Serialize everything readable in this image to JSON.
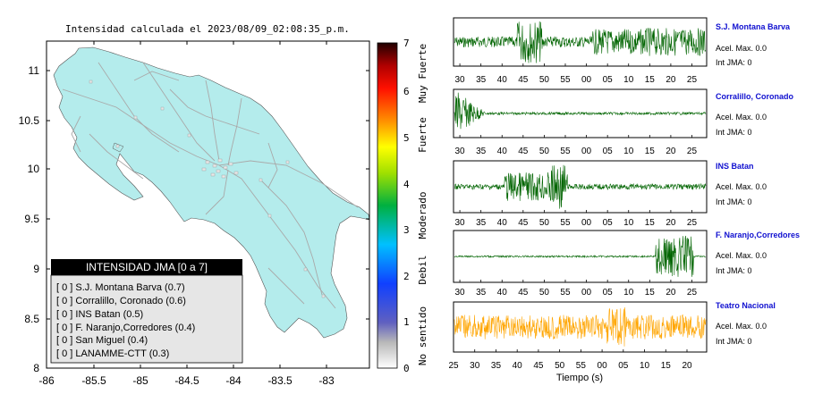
{
  "map": {
    "title": "Intensidad calculada el 2023/08/09_02:08:35_p.m.",
    "y_ticks": [
      "11",
      "10.5",
      "10",
      "9.5",
      "9",
      "8.5",
      "8"
    ],
    "x_ticks": [
      "-86",
      "-85.5",
      "-85",
      "-84.5",
      "-84",
      "-83.5",
      "-83"
    ],
    "land_color": "#b4ecec"
  },
  "legend": {
    "title": "INTENSIDAD JMA [0 a 7]",
    "items": [
      "[ 0 ]  S.J. Montana Barva (0.7)",
      "[ 0 ]  Corralillo, Coronado (0.6)",
      "[ 0 ]  INS Batan (0.5)",
      "[ 0 ]  F. Naranjo,Corredores (0.4)",
      "[ 0 ]  San Miguel (0.4)",
      "[ 0 ]  LANAMME-CTT (0.3)"
    ]
  },
  "colorbar": {
    "ticks": [
      "7",
      "6",
      "5",
      "4",
      "3",
      "2",
      "1",
      "0"
    ],
    "labels": [
      "Muy Fuerte",
      "Fuerte",
      "Moderado",
      "Debil",
      "No sentido"
    ]
  },
  "chart_data": [
    {
      "type": "line",
      "description": "seismogram",
      "station": "S.J. Montana Barva",
      "acel": "Acel. Max. 0.0",
      "int": "Int JMA: 0",
      "color": "#006400",
      "x_ticks": [
        "30",
        "35",
        "40",
        "45",
        "50",
        "55",
        "00",
        "05",
        "10",
        "15",
        "20",
        "25"
      ]
    },
    {
      "type": "line",
      "station": "Corralillo, Coronado",
      "acel": "Acel. Max. 0.0",
      "int": "Int JMA: 0",
      "color": "#006400",
      "x_ticks": [
        "30",
        "35",
        "40",
        "45",
        "50",
        "55",
        "00",
        "05",
        "10",
        "15",
        "20",
        "25"
      ]
    },
    {
      "type": "line",
      "station": "INS Batan",
      "acel": "Acel. Max. 0.0",
      "int": "Int JMA: 0",
      "color": "#006400",
      "x_ticks": [
        "30",
        "35",
        "40",
        "45",
        "50",
        "55",
        "00",
        "05",
        "10",
        "15",
        "20",
        "25"
      ]
    },
    {
      "type": "line",
      "station": "F. Naranjo,Corredores",
      "acel": "Acel. Max. 0.0",
      "int": "Int JMA: 0",
      "color": "#006400",
      "x_ticks": [
        "30",
        "35",
        "40",
        "45",
        "50",
        "55",
        "00",
        "05",
        "10",
        "15",
        "20",
        "25"
      ]
    },
    {
      "type": "line",
      "station": "Teatro Nacional",
      "acel": "Acel. Max. 0.0",
      "int": "Int JMA: 0",
      "color": "#ffa500",
      "x_ticks": [
        "25",
        "30",
        "35",
        "40",
        "45",
        "50",
        "55",
        "00",
        "05",
        "10",
        "15",
        "20"
      ],
      "xlabel": "Tiempo (s)"
    }
  ]
}
